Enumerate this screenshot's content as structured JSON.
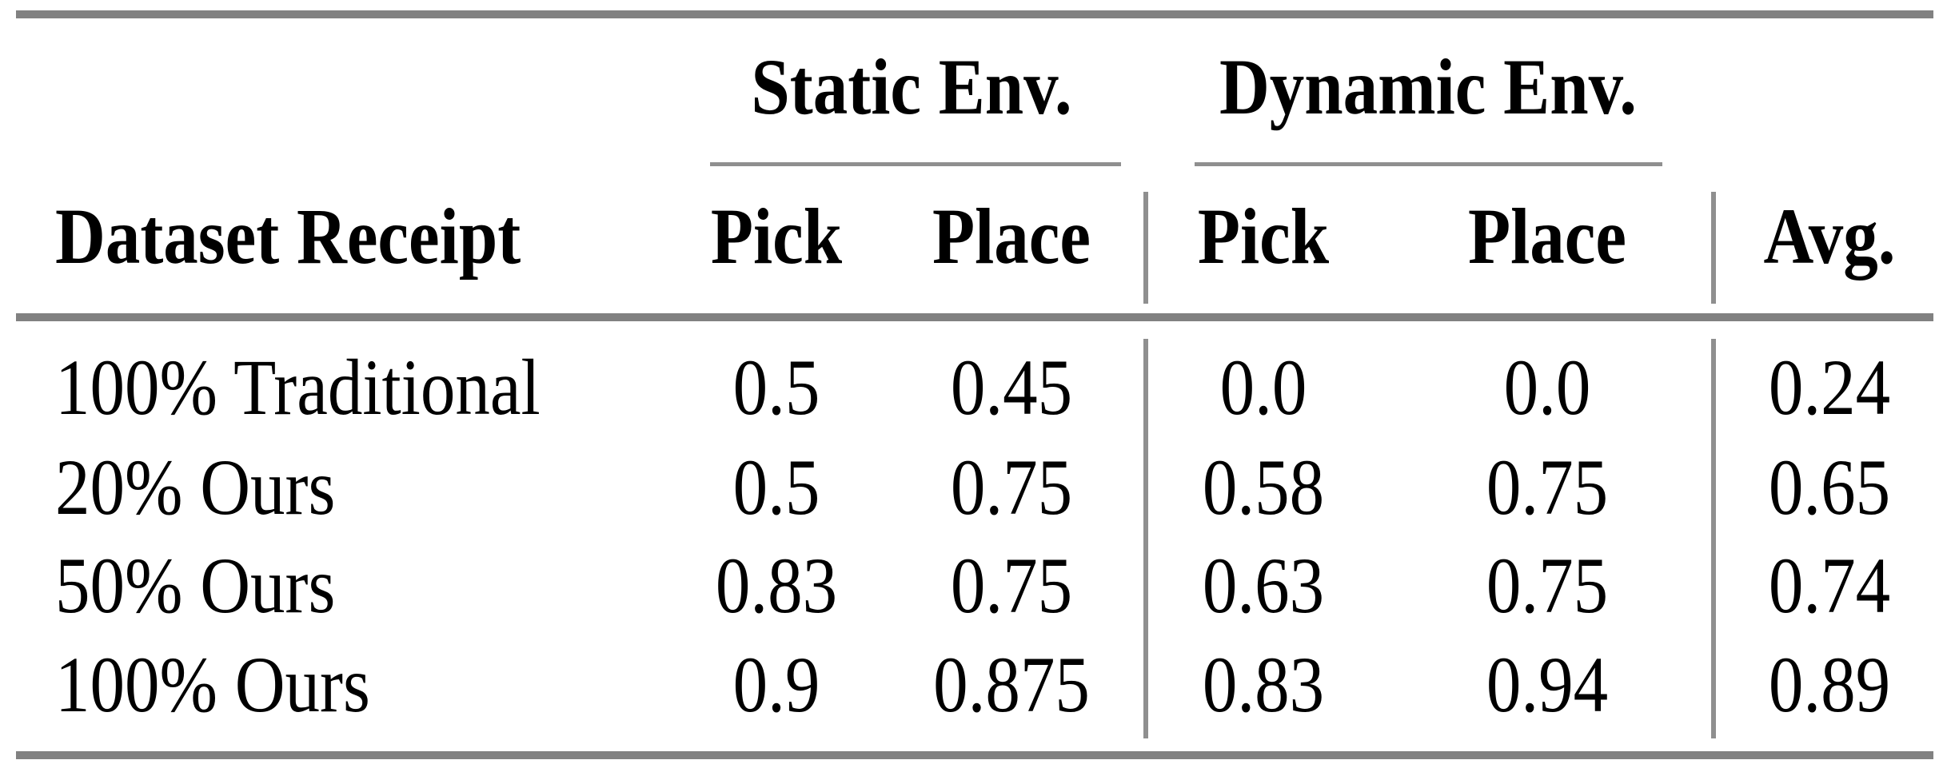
{
  "page": {
    "background": "#ffffff",
    "text_color": "#000000"
  },
  "colors": {
    "thick_rule": "#818181",
    "thin_rule": "#8f8f8f"
  },
  "table": {
    "spanners": {
      "static": "Static Env.",
      "dynamic": "Dynamic Env."
    },
    "headers": {
      "row_label": "Dataset Receipt",
      "static_pick": "Pick",
      "static_place": "Place",
      "dynamic_pick": "Pick",
      "dynamic_place": "Place",
      "avg": "Avg."
    },
    "rows": [
      {
        "label": "100% Traditional",
        "static_pick": "0.5",
        "static_place": "0.45",
        "dynamic_pick": "0.0",
        "dynamic_place": "0.0",
        "avg": "0.24"
      },
      {
        "label": "20% Ours",
        "static_pick": "0.5",
        "static_place": "0.75",
        "dynamic_pick": "0.58",
        "dynamic_place": "0.75",
        "avg": "0.65"
      },
      {
        "label": "50% Ours",
        "static_pick": "0.83",
        "static_place": "0.75",
        "dynamic_pick": "0.63",
        "dynamic_place": "0.75",
        "avg": "0.74"
      },
      {
        "label": "100% Ours",
        "static_pick": "0.9",
        "static_place": "0.875",
        "dynamic_pick": "0.83",
        "dynamic_place": "0.94",
        "avg": "0.89"
      }
    ]
  },
  "chart_data": {
    "type": "table",
    "columns": [
      "Dataset Receipt",
      "Static Env. Pick",
      "Static Env. Place",
      "Dynamic Env. Pick",
      "Dynamic Env. Place",
      "Avg."
    ],
    "rows": [
      [
        "100% Traditional",
        0.5,
        0.45,
        0.0,
        0.0,
        0.24
      ],
      [
        "20% Ours",
        0.5,
        0.75,
        0.58,
        0.75,
        0.65
      ],
      [
        "50% Ours",
        0.83,
        0.75,
        0.63,
        0.75,
        0.74
      ],
      [
        "100% Ours",
        0.9,
        0.875,
        0.83,
        0.94,
        0.89
      ]
    ]
  }
}
